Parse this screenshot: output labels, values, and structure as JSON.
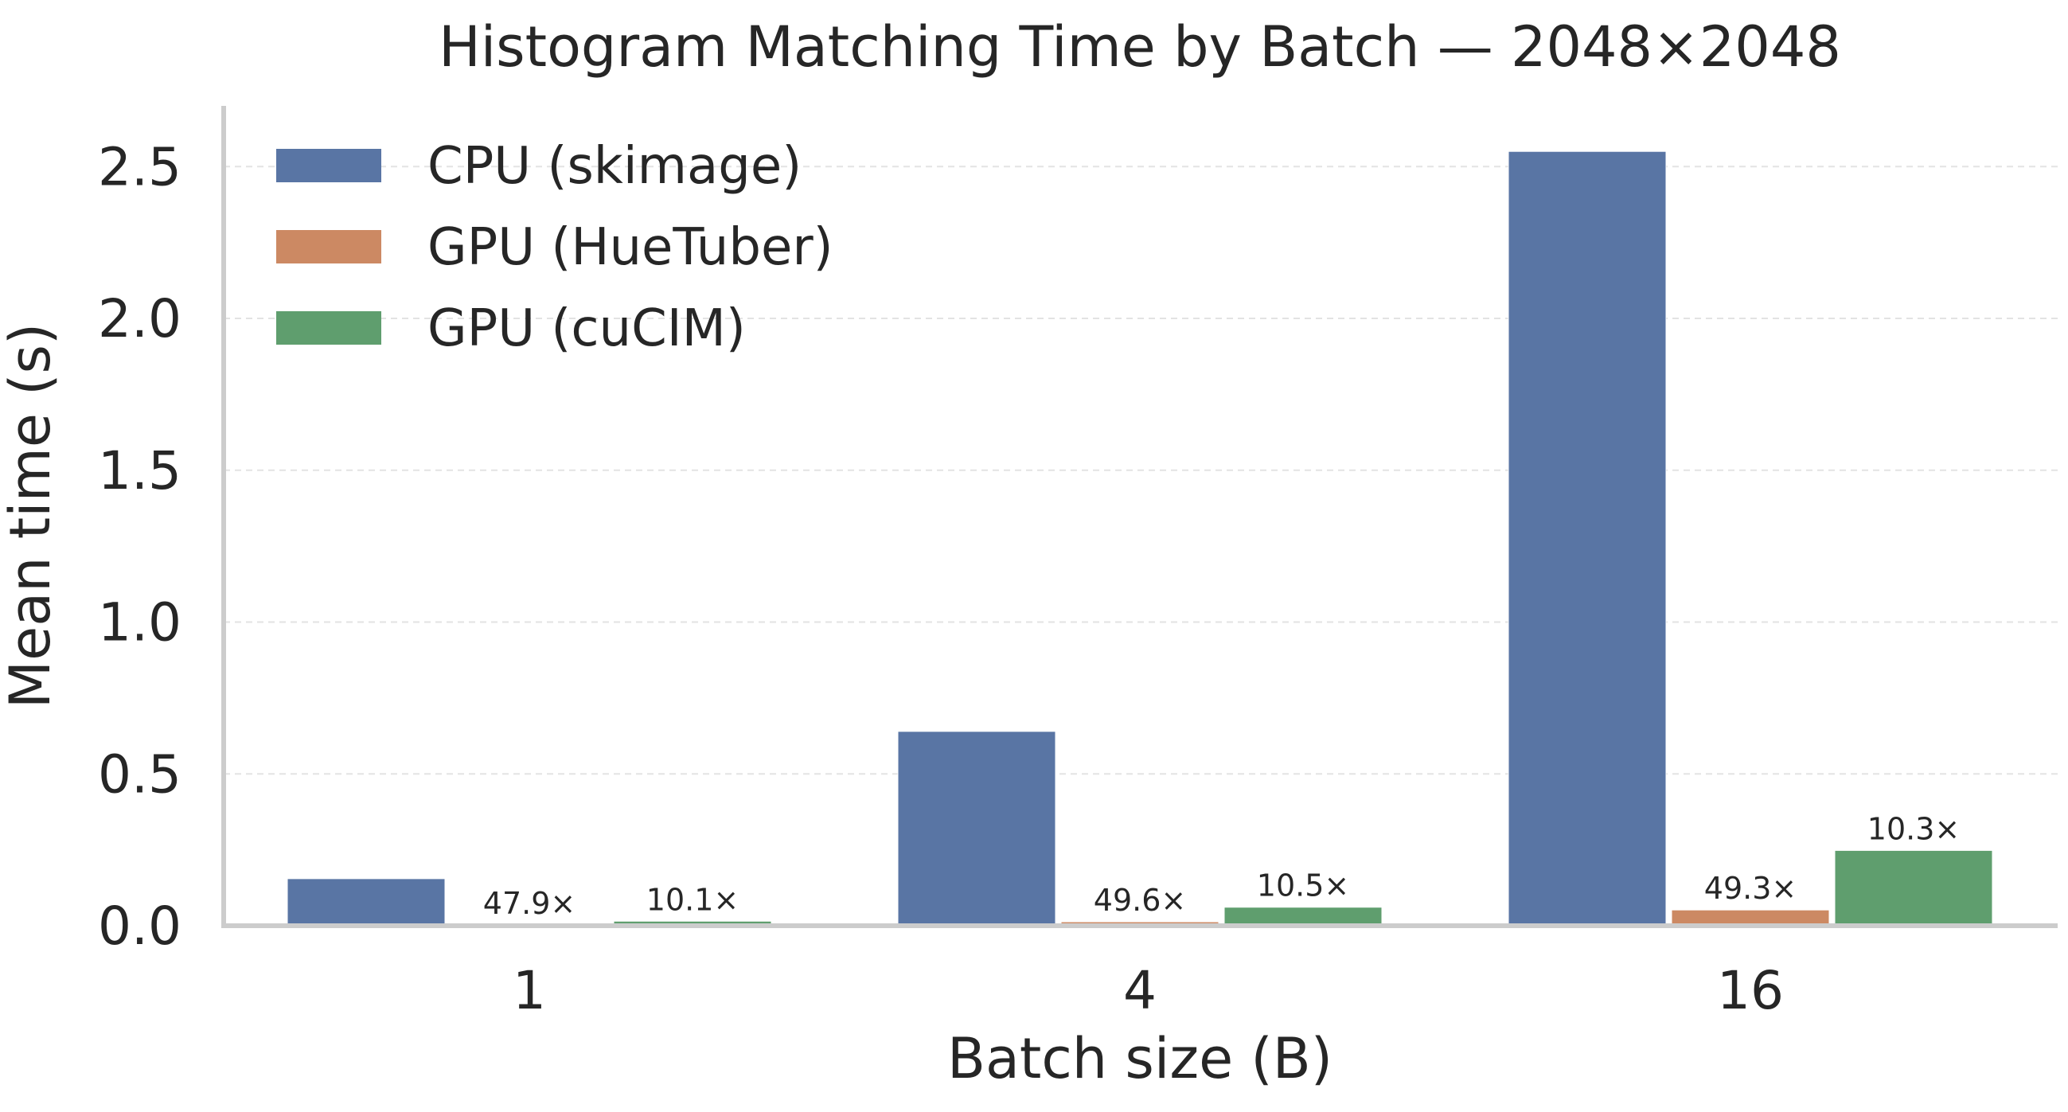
{
  "chart_data": {
    "type": "bar",
    "title": "Histogram Matching Time by Batch — 2048×2048",
    "xlabel": "Batch size (B)",
    "ylabel": "Mean time (s)",
    "categories": [
      "1",
      "4",
      "16"
    ],
    "ylim": [
      0,
      2.7
    ],
    "yticks": [
      "0.0",
      "0.5",
      "1.0",
      "1.5",
      "2.0",
      "2.5"
    ],
    "ytick_values": [
      0,
      0.5,
      1.0,
      1.5,
      2.0,
      2.5
    ],
    "grid": "horizontal dashed",
    "legend_position": "top-left",
    "series": [
      {
        "name": "CPU (skimage)",
        "color": "#5975a4",
        "values": [
          0.155,
          0.64,
          2.55
        ],
        "labels": [
          "",
          "",
          ""
        ]
      },
      {
        "name": "GPU (HueTuber)",
        "color": "#cc8963",
        "values": [
          0.003,
          0.013,
          0.052
        ],
        "labels": [
          "47.9×",
          "49.6×",
          "49.3×"
        ]
      },
      {
        "name": "GPU (cuCIM)",
        "color": "#5f9e6e",
        "values": [
          0.015,
          0.061,
          0.248
        ],
        "labels": [
          "10.1×",
          "10.5×",
          "10.3×"
        ]
      }
    ]
  }
}
